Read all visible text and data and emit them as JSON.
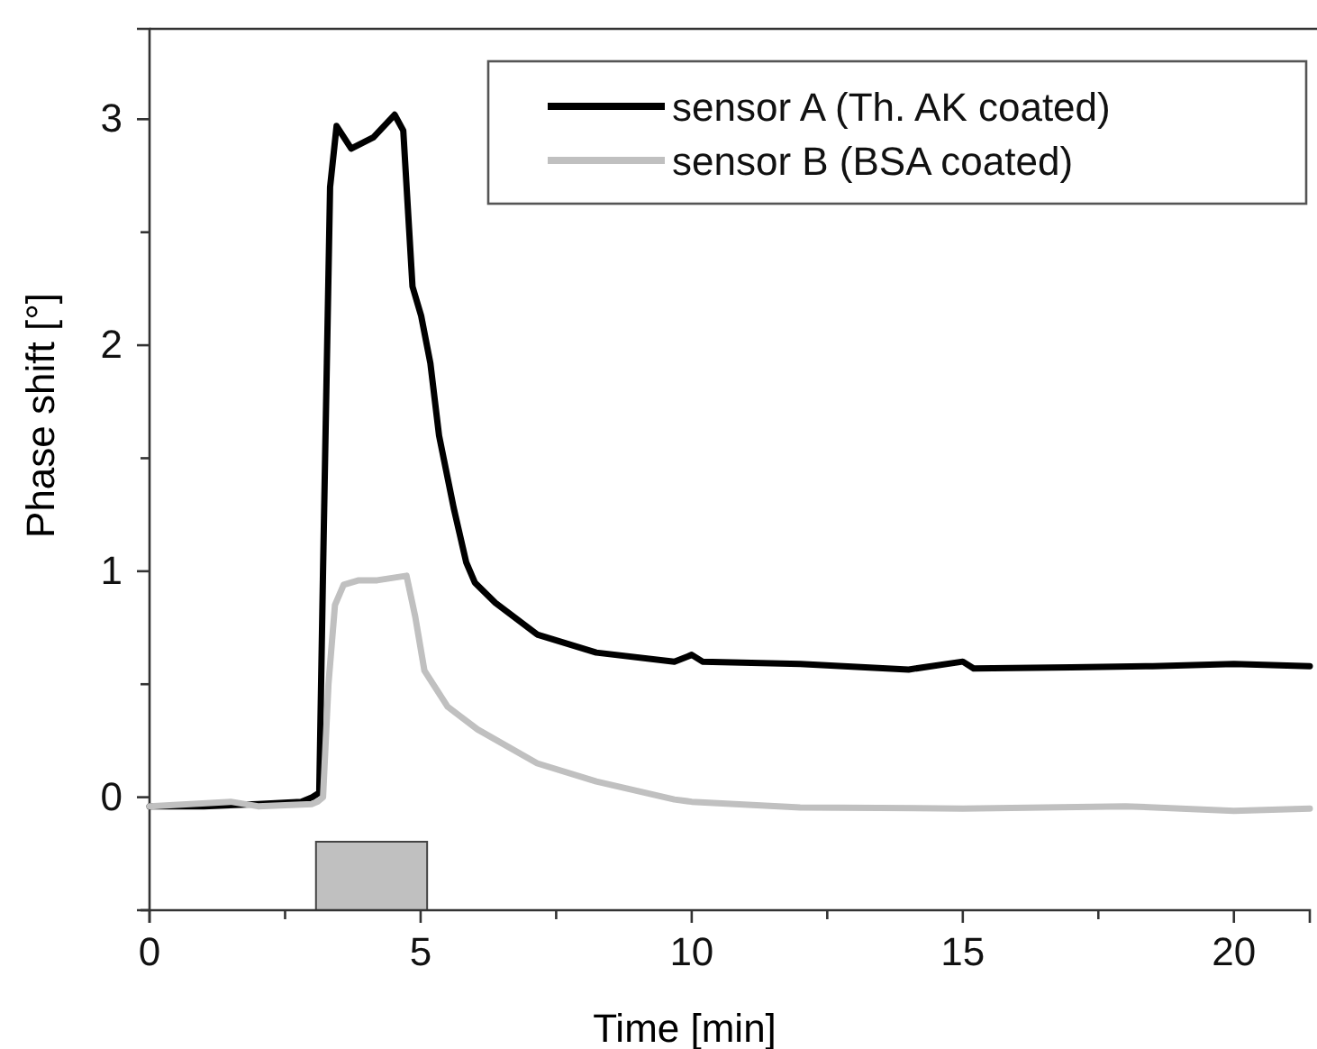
{
  "chart_data": {
    "type": "line",
    "xlabel": "Time [min]",
    "ylabel": "Phase shift [°]",
    "xlim": [
      0,
      21.4
    ],
    "ylim": [
      -0.5,
      3.4
    ],
    "xticks": [
      0,
      {
        "value": 2.5,
        "label": null
      },
      5,
      {
        "value": 7.5,
        "label": null
      },
      10,
      {
        "value": 12.5,
        "label": null
      },
      15,
      {
        "value": 17.5,
        "label": null
      },
      20
    ],
    "yticks": [
      {
        "value": -0.5,
        "label": null
      },
      0,
      {
        "value": 0.5,
        "label": null
      },
      1,
      {
        "value": 1.5,
        "label": null
      },
      2,
      {
        "value": 2.5,
        "label": null
      },
      3
    ],
    "legend": "top right",
    "grid": false,
    "marker": "none",
    "line_style": "solid",
    "bands": [
      {
        "axis": "x",
        "from": 3.07,
        "to": 5.12,
        "color": "#c0c0c0"
      }
    ],
    "series": [
      {
        "name": "sensor A (Th. AK coated)",
        "color": "#000000",
        "x": [
          0,
          1,
          2,
          2.8,
          3.0,
          3.13,
          3.2,
          3.33,
          3.45,
          3.72,
          4.13,
          4.52,
          4.68,
          4.85,
          5.01,
          5.18,
          5.34,
          5.61,
          5.84,
          6.0,
          6.38,
          7.15,
          8.24,
          9.68,
          10,
          10.2,
          12,
          14,
          15,
          15.2,
          17,
          18.5,
          20,
          21.4
        ],
        "values": [
          -0.04,
          -0.04,
          -0.03,
          -0.02,
          0.0,
          0.02,
          1.0,
          2.7,
          2.97,
          2.87,
          2.92,
          3.02,
          2.95,
          2.26,
          2.13,
          1.92,
          1.6,
          1.28,
          1.04,
          0.95,
          0.86,
          0.72,
          0.64,
          0.6,
          0.63,
          0.6,
          0.59,
          0.565,
          0.6,
          0.57,
          0.575,
          0.58,
          0.59,
          0.58
        ]
      },
      {
        "name": "sensor B (BSA coated)",
        "color": "#c0c0c0",
        "x": [
          0,
          1.5,
          2,
          3.0,
          3.1,
          3.2,
          3.3,
          3.42,
          3.58,
          3.86,
          4.2,
          4.74,
          4.9,
          5.07,
          5.5,
          6.05,
          7.15,
          8.24,
          9.68,
          10,
          12,
          15,
          18,
          20,
          21.4
        ],
        "values": [
          -0.04,
          -0.02,
          -0.04,
          -0.03,
          -0.02,
          0.0,
          0.5,
          0.85,
          0.94,
          0.96,
          0.96,
          0.98,
          0.8,
          0.56,
          0.4,
          0.3,
          0.15,
          0.07,
          -0.01,
          -0.02,
          -0.045,
          -0.05,
          -0.04,
          -0.06,
          -0.05
        ]
      }
    ]
  }
}
